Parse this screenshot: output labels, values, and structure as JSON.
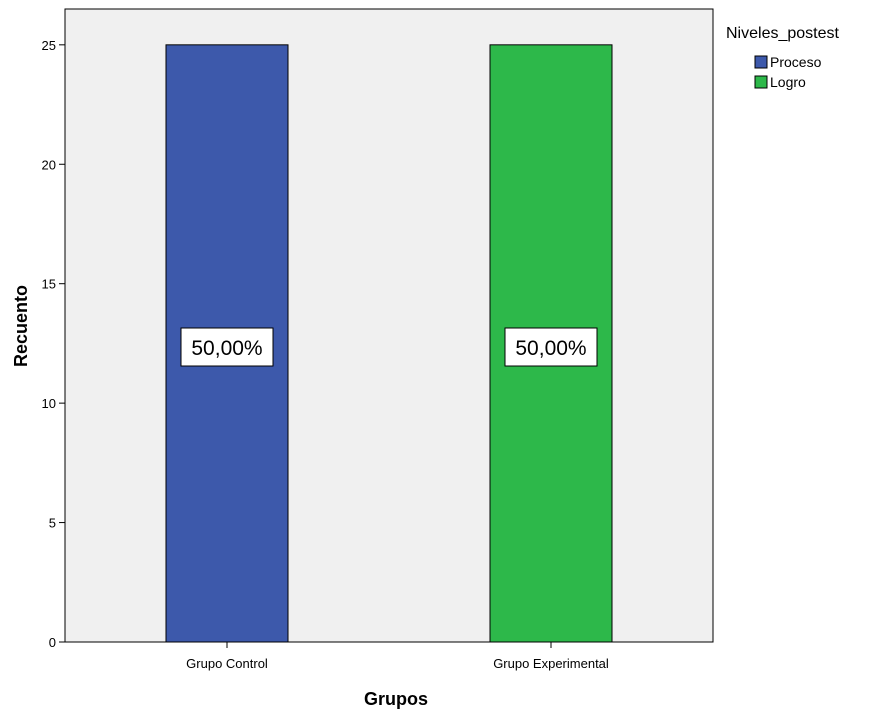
{
  "chart_data": {
    "type": "bar",
    "categories": [
      "Grupo Control",
      "Grupo Experimental"
    ],
    "series": [
      {
        "name": "Proceso",
        "values": [
          25,
          0
        ],
        "color": "#3d59ab"
      },
      {
        "name": "Logro",
        "values": [
          0,
          25
        ],
        "color": "#2db84a"
      }
    ],
    "data_labels": [
      "50,00%",
      "50,00%"
    ],
    "xlabel": "Grupos",
    "ylabel": "Recuento",
    "ylim": [
      0,
      26.5
    ],
    "y_ticks": [
      0,
      5,
      10,
      15,
      20,
      25
    ],
    "grid": false,
    "legend_title": "Niveles_postest",
    "legend_position": "top-right",
    "plot_background": "#f0f0f0"
  }
}
